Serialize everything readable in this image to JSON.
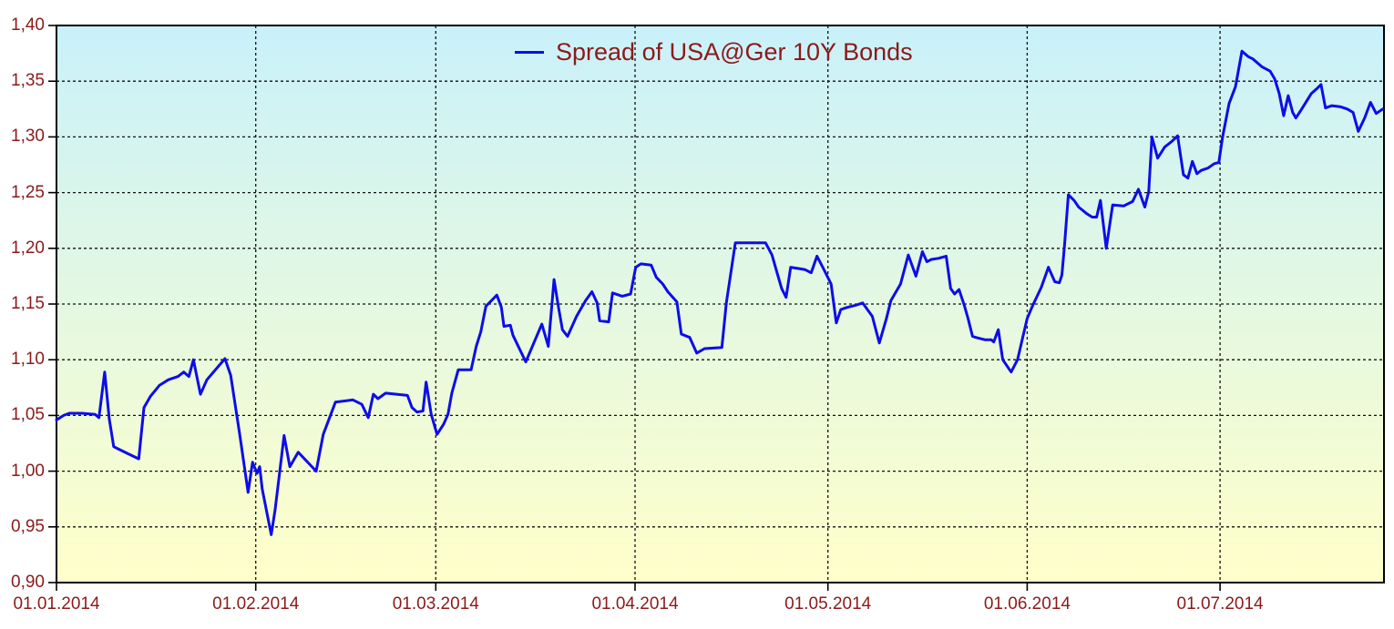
{
  "chart_data": {
    "type": "line",
    "title": "",
    "legend": {
      "label": "Spread of USA@Ger 10Y Bonds",
      "position": "top-center"
    },
    "x_unit": "calendar days since 01.01.2014",
    "x_domain": [
      0,
      206.5
    ],
    "ylim": [
      0.9,
      1.4
    ],
    "grid": "dotted",
    "y_ticks": [
      0.9,
      0.95,
      1.0,
      1.05,
      1.1,
      1.15,
      1.2,
      1.25,
      1.3,
      1.35,
      1.4
    ],
    "y_tick_labels": [
      "0,90",
      "0,95",
      "1,00",
      "1,05",
      "1,10",
      "1,15",
      "1,20",
      "1,25",
      "1,30",
      "1,35",
      "1,40"
    ],
    "x_ticks": [
      {
        "d": 0,
        "label": "01.01.2014"
      },
      {
        "d": 31,
        "label": "01.02.2014"
      },
      {
        "d": 59,
        "label": "01.03.2014"
      },
      {
        "d": 90,
        "label": "01.04.2014"
      },
      {
        "d": 120,
        "label": "01.05.2014"
      },
      {
        "d": 151,
        "label": "01.06.2014"
      },
      {
        "d": 181,
        "label": "01.07.2014"
      }
    ],
    "colors": {
      "line": "#0d0de8",
      "label_text": "#8b1a1a",
      "grid": "#111111",
      "axis": "#000000",
      "plot_bg_top": "#c9f1fa",
      "plot_bg_bottom": "#ffffc9",
      "outer_bg": "#ffffff"
    },
    "series": [
      {
        "name": "Spread of USA@Ger 10Y Bonds",
        "points": [
          [
            0,
            1.046
          ],
          [
            1.1,
            1.05
          ],
          [
            2,
            1.052
          ],
          [
            4,
            1.052
          ],
          [
            6,
            1.051
          ],
          [
            6.6,
            1.048
          ],
          [
            7.5,
            1.089
          ],
          [
            8.2,
            1.047
          ],
          [
            8.9,
            1.022
          ],
          [
            10.3,
            1.018
          ],
          [
            12.8,
            1.011
          ],
          [
            13.6,
            1.057
          ],
          [
            14.6,
            1.067
          ],
          [
            16,
            1.077
          ],
          [
            17.4,
            1.082
          ],
          [
            18.9,
            1.085
          ],
          [
            19.8,
            1.089
          ],
          [
            20.6,
            1.085
          ],
          [
            21.3,
            1.1
          ],
          [
            22.4,
            1.069
          ],
          [
            23.4,
            1.082
          ],
          [
            26.2,
            1.101
          ],
          [
            27.1,
            1.086
          ],
          [
            28.5,
            1.033
          ],
          [
            29.8,
            0.981
          ],
          [
            30.5,
            1.008
          ],
          [
            31.2,
            0.998
          ],
          [
            31.6,
            1.004
          ],
          [
            32,
            0.984
          ],
          [
            33.4,
            0.943
          ],
          [
            34,
            0.965
          ],
          [
            34.7,
            0.998
          ],
          [
            35.4,
            1.032
          ],
          [
            36.3,
            1.004
          ],
          [
            37.6,
            1.017
          ],
          [
            40.4,
            1.0
          ],
          [
            41.5,
            1.033
          ],
          [
            43.4,
            1.062
          ],
          [
            46.1,
            1.064
          ],
          [
            47.5,
            1.06
          ],
          [
            48.5,
            1.048
          ],
          [
            49.3,
            1.069
          ],
          [
            50,
            1.065
          ],
          [
            51.2,
            1.07
          ],
          [
            54.6,
            1.068
          ],
          [
            55.3,
            1.057
          ],
          [
            56.1,
            1.053
          ],
          [
            57,
            1.054
          ],
          [
            57.5,
            1.08
          ],
          [
            58.3,
            1.051
          ],
          [
            59.2,
            1.033
          ],
          [
            60.2,
            1.042
          ],
          [
            60.9,
            1.051
          ],
          [
            61.5,
            1.07
          ],
          [
            62.5,
            1.091
          ],
          [
            64.5,
            1.091
          ],
          [
            65.3,
            1.112
          ],
          [
            66,
            1.125
          ],
          [
            66.8,
            1.148
          ],
          [
            68.5,
            1.158
          ],
          [
            69.2,
            1.147
          ],
          [
            69.6,
            1.13
          ],
          [
            70.6,
            1.131
          ],
          [
            71,
            1.122
          ],
          [
            73,
            1.098
          ],
          [
            75.5,
            1.132
          ],
          [
            76.5,
            1.112
          ],
          [
            77.4,
            1.172
          ],
          [
            78.1,
            1.147
          ],
          [
            78.7,
            1.127
          ],
          [
            79.5,
            1.121
          ],
          [
            80.9,
            1.139
          ],
          [
            82.3,
            1.153
          ],
          [
            83.3,
            1.161
          ],
          [
            84.1,
            1.151
          ],
          [
            84.5,
            1.135
          ],
          [
            85.9,
            1.134
          ],
          [
            86.5,
            1.16
          ],
          [
            88,
            1.157
          ],
          [
            89.3,
            1.159
          ],
          [
            90.1,
            1.183
          ],
          [
            90.9,
            1.186
          ],
          [
            92.5,
            1.185
          ],
          [
            93.3,
            1.174
          ],
          [
            94.3,
            1.168
          ],
          [
            95.1,
            1.161
          ],
          [
            96.5,
            1.152
          ],
          [
            97.2,
            1.123
          ],
          [
            98.5,
            1.12
          ],
          [
            99.6,
            1.106
          ],
          [
            100.8,
            1.11
          ],
          [
            103.5,
            1.111
          ],
          [
            104.2,
            1.151
          ],
          [
            105.6,
            1.205
          ],
          [
            110.3,
            1.205
          ],
          [
            111.3,
            1.194
          ],
          [
            112.1,
            1.178
          ],
          [
            112.8,
            1.164
          ],
          [
            113.5,
            1.156
          ],
          [
            114.2,
            1.183
          ],
          [
            116.4,
            1.181
          ],
          [
            117.4,
            1.178
          ],
          [
            118.3,
            1.193
          ],
          [
            119.2,
            1.183
          ],
          [
            120.5,
            1.168
          ],
          [
            121.3,
            1.133
          ],
          [
            122,
            1.145
          ],
          [
            123,
            1.147
          ],
          [
            124.4,
            1.149
          ],
          [
            125.4,
            1.151
          ],
          [
            126.9,
            1.139
          ],
          [
            128,
            1.115
          ],
          [
            129.1,
            1.137
          ],
          [
            129.8,
            1.153
          ],
          [
            131.3,
            1.168
          ],
          [
            132.5,
            1.194
          ],
          [
            133.7,
            1.175
          ],
          [
            134.7,
            1.197
          ],
          [
            135.4,
            1.188
          ],
          [
            136.1,
            1.19
          ],
          [
            137.2,
            1.191
          ],
          [
            138.4,
            1.193
          ],
          [
            139.1,
            1.164
          ],
          [
            139.7,
            1.159
          ],
          [
            140.4,
            1.163
          ],
          [
            141.2,
            1.149
          ],
          [
            141.8,
            1.137
          ],
          [
            142.5,
            1.121
          ],
          [
            143,
            1.12
          ],
          [
            144.4,
            1.118
          ],
          [
            145.4,
            1.118
          ],
          [
            145.8,
            1.116
          ],
          [
            146.5,
            1.127
          ],
          [
            147.2,
            1.1
          ],
          [
            148.5,
            1.089
          ],
          [
            149.5,
            1.1
          ],
          [
            150.3,
            1.12
          ],
          [
            151,
            1.137
          ],
          [
            151.8,
            1.148
          ],
          [
            153.2,
            1.165
          ],
          [
            154.3,
            1.183
          ],
          [
            155.3,
            1.17
          ],
          [
            156,
            1.169
          ],
          [
            156.4,
            1.176
          ],
          [
            156.8,
            1.202
          ],
          [
            157.4,
            1.248
          ],
          [
            158.3,
            1.243
          ],
          [
            159,
            1.237
          ],
          [
            160.3,
            1.231
          ],
          [
            161.1,
            1.228
          ],
          [
            161.8,
            1.228
          ],
          [
            162.4,
            1.243
          ],
          [
            163.3,
            1.2
          ],
          [
            164.3,
            1.239
          ],
          [
            166,
            1.238
          ],
          [
            167.4,
            1.242
          ],
          [
            168.3,
            1.253
          ],
          [
            169.3,
            1.237
          ],
          [
            169.9,
            1.251
          ],
          [
            170.4,
            1.3
          ],
          [
            171.3,
            1.281
          ],
          [
            172.4,
            1.291
          ],
          [
            173.5,
            1.296
          ],
          [
            174.4,
            1.301
          ],
          [
            175.3,
            1.266
          ],
          [
            176,
            1.263
          ],
          [
            176.7,
            1.278
          ],
          [
            177.4,
            1.267
          ],
          [
            178.1,
            1.27
          ],
          [
            179.1,
            1.272
          ],
          [
            180.1,
            1.276
          ],
          [
            180.8,
            1.277
          ],
          [
            181.4,
            1.3
          ],
          [
            182.4,
            1.33
          ],
          [
            183.4,
            1.345
          ],
          [
            184.4,
            1.377
          ],
          [
            185.4,
            1.372
          ],
          [
            186.1,
            1.37
          ],
          [
            187.5,
            1.363
          ],
          [
            188.8,
            1.359
          ],
          [
            189.5,
            1.352
          ],
          [
            190.2,
            1.339
          ],
          [
            190.9,
            1.319
          ],
          [
            191.6,
            1.337
          ],
          [
            192.3,
            1.322
          ],
          [
            192.8,
            1.317
          ],
          [
            193.7,
            1.325
          ],
          [
            195.2,
            1.339
          ],
          [
            196,
            1.343
          ],
          [
            196.7,
            1.347
          ],
          [
            197.4,
            1.326
          ],
          [
            198.4,
            1.328
          ],
          [
            199.8,
            1.327
          ],
          [
            200.8,
            1.325
          ],
          [
            201.7,
            1.322
          ],
          [
            202.5,
            1.305
          ],
          [
            203.5,
            1.317
          ],
          [
            204.4,
            1.331
          ],
          [
            205.3,
            1.321
          ],
          [
            206.3,
            1.325
          ]
        ]
      }
    ]
  }
}
